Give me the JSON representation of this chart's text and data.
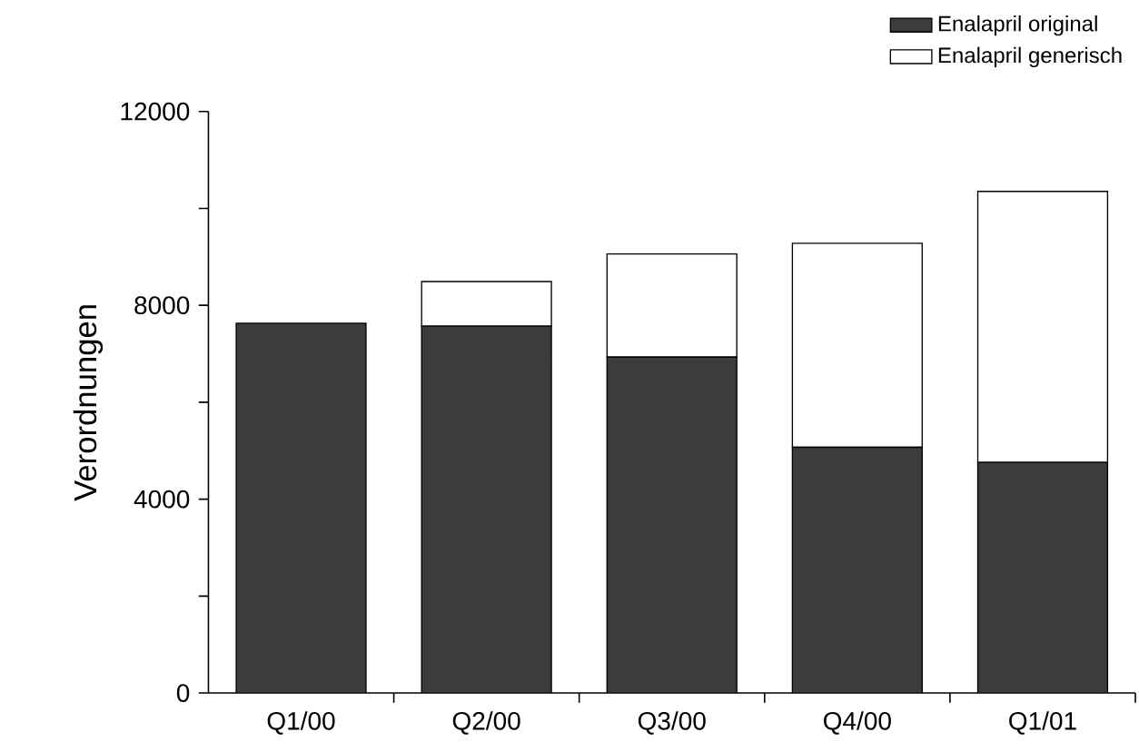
{
  "chart_data": {
    "type": "bar",
    "stacked": true,
    "ylabel": "Verordnungen",
    "categories": [
      "Q1/00",
      "Q2/00",
      "Q3/00",
      "Q4/00",
      "Q1/01"
    ],
    "series": [
      {
        "name": "Enalapril original",
        "color": "#3c3c3c",
        "values": [
          7630,
          7570,
          6930,
          5070,
          4760
        ]
      },
      {
        "name": "Enalapril generisch",
        "color": "#ffffff",
        "values": [
          null,
          920,
          2130,
          4210,
          5590
        ]
      }
    ],
    "ylim": [
      0,
      12000
    ],
    "yticks": [
      0,
      {
        "value": 2000,
        "label": null
      },
      4000,
      {
        "value": 6000,
        "label": null
      },
      8000,
      {
        "value": 10000,
        "label": null
      },
      12000
    ],
    "grid": false,
    "legend": "top right"
  }
}
